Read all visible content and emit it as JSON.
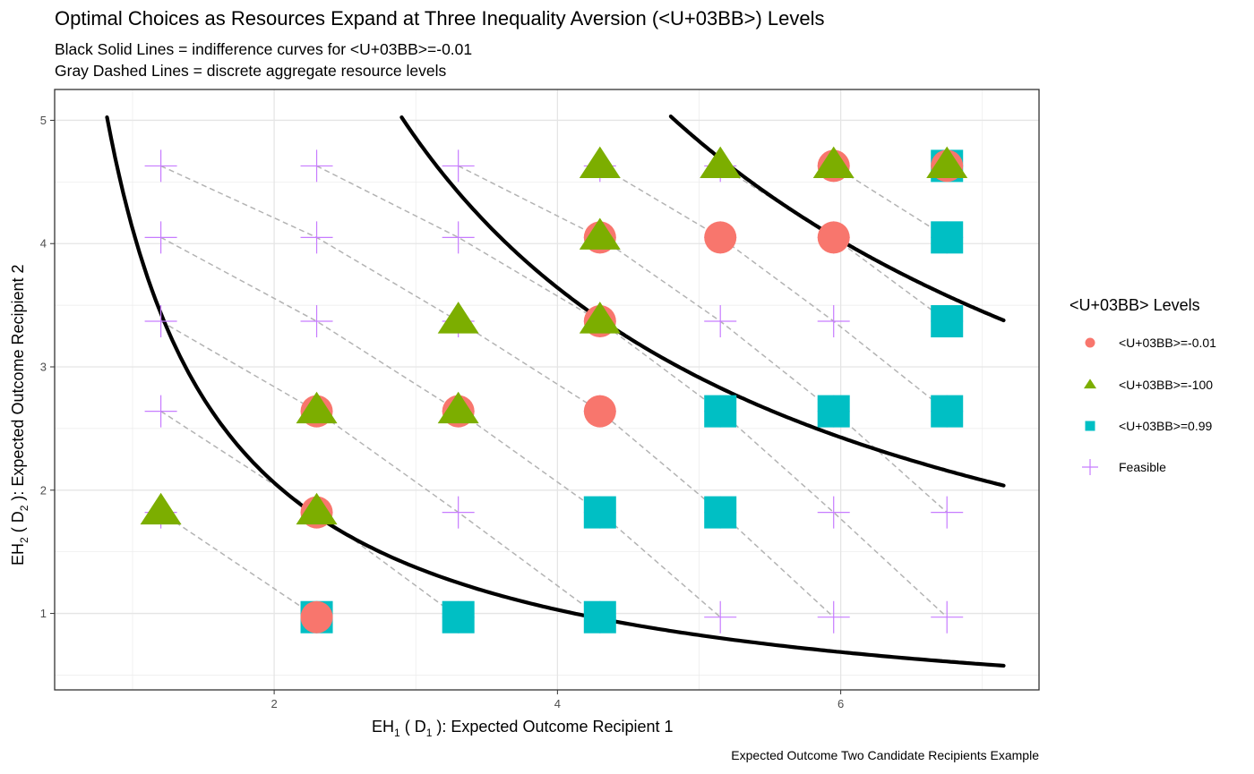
{
  "title": "Optimal Choices as Resources Expand at Three Inequality Aversion (<U+03BB>) Levels",
  "subtitle_line1": "Black Solid Lines = indifference curves for <U+03BB>=-0.01",
  "subtitle_line2": "Gray Dashed Lines = discrete aggregate resource levels",
  "caption": "Expected Outcome Two Candidate Recipients Example",
  "colors": {
    "lambda_neg001": "#F8766D",
    "lambda_neg100": "#7CAE00",
    "lambda_099": "#00BFC4",
    "feasible": "#C77CFF",
    "indifference": "#000000",
    "budget": "#B3B3B3"
  },
  "chart_data": {
    "type": "scatter",
    "title": "Optimal Choices as Resources Expand at Three Inequality Aversion (<U+03BB>) Levels",
    "xlabel": {
      "main": "EH",
      "sub1": "1",
      "mid": " ( D",
      "sub2": "1",
      "tail": " ):  Expected Outcome Recipient 1"
    },
    "ylabel": {
      "main": "EH",
      "sub1": "2",
      "mid": " ( D",
      "sub2": "2",
      "tail": " ):  Expected Outcome Recipient 2"
    },
    "xlim": [
      0.45,
      7.4
    ],
    "ylim": [
      0.38,
      5.25
    ],
    "xticks": [
      2,
      4,
      6
    ],
    "yticks": [
      1,
      2,
      3,
      4,
      5
    ],
    "grid": true,
    "legend_position": "right",
    "legend_title": "<U+03BB> Levels",
    "legend_items": [
      {
        "label": "<U+03BB>=-0.01",
        "shape": "circle",
        "color": "#F8766D"
      },
      {
        "label": "<U+03BB>=-100",
        "shape": "triangle",
        "color": "#7CAE00"
      },
      {
        "label": "<U+03BB>=0.99",
        "shape": "square",
        "color": "#00BFC4"
      },
      {
        "label": "Feasible",
        "shape": "plus",
        "color": "#C77CFF"
      }
    ],
    "feasible": [
      [
        1.2,
        4.63
      ],
      [
        2.3,
        4.63
      ],
      [
        3.3,
        4.63
      ],
      [
        4.3,
        4.63
      ],
      [
        5.15,
        4.63
      ],
      [
        5.95,
        4.63
      ],
      [
        6.75,
        4.63
      ],
      [
        1.2,
        4.05
      ],
      [
        2.3,
        4.05
      ],
      [
        3.3,
        4.05
      ],
      [
        4.3,
        4.05
      ],
      [
        5.15,
        4.05
      ],
      [
        5.95,
        4.05
      ],
      [
        6.75,
        4.05
      ],
      [
        1.2,
        3.37
      ],
      [
        2.3,
        3.37
      ],
      [
        3.3,
        3.37
      ],
      [
        4.3,
        3.37
      ],
      [
        5.15,
        3.37
      ],
      [
        5.95,
        3.37
      ],
      [
        6.75,
        3.37
      ],
      [
        1.2,
        2.64
      ],
      [
        2.3,
        2.64
      ],
      [
        3.3,
        2.64
      ],
      [
        4.3,
        2.64
      ],
      [
        5.15,
        2.64
      ],
      [
        5.95,
        2.64
      ],
      [
        6.75,
        2.64
      ],
      [
        1.2,
        1.82
      ],
      [
        2.3,
        1.82
      ],
      [
        3.3,
        1.82
      ],
      [
        4.3,
        1.82
      ],
      [
        5.15,
        1.82
      ],
      [
        5.95,
        1.82
      ],
      [
        6.75,
        1.82
      ],
      [
        2.3,
        0.97
      ],
      [
        3.3,
        0.97
      ],
      [
        4.3,
        0.97
      ],
      [
        5.15,
        0.97
      ],
      [
        5.95,
        0.97
      ],
      [
        6.75,
        0.97
      ]
    ],
    "series": [
      {
        "name": "<U+03BB>=-0.01",
        "shape": "circle",
        "points": [
          [
            2.3,
            0.97
          ],
          [
            2.3,
            1.82
          ],
          [
            2.3,
            2.64
          ],
          [
            3.3,
            2.64
          ],
          [
            4.3,
            2.64
          ],
          [
            4.3,
            3.37
          ],
          [
            4.3,
            4.05
          ],
          [
            5.15,
            4.05
          ],
          [
            5.95,
            4.05
          ],
          [
            5.95,
            4.63
          ],
          [
            6.75,
            4.63
          ]
        ]
      },
      {
        "name": "<U+03BB>=-100",
        "shape": "triangle",
        "points": [
          [
            1.2,
            1.82
          ],
          [
            2.3,
            1.82
          ],
          [
            2.3,
            2.64
          ],
          [
            3.3,
            2.64
          ],
          [
            3.3,
            3.37
          ],
          [
            4.3,
            3.37
          ],
          [
            4.3,
            4.05
          ],
          [
            4.3,
            4.63
          ],
          [
            5.15,
            4.63
          ],
          [
            5.95,
            4.63
          ],
          [
            6.75,
            4.63
          ]
        ]
      },
      {
        "name": "<U+03BB>=0.99",
        "shape": "square",
        "points": [
          [
            2.3,
            0.97
          ],
          [
            3.3,
            0.97
          ],
          [
            4.3,
            0.97
          ],
          [
            4.3,
            1.82
          ],
          [
            5.15,
            1.82
          ],
          [
            5.15,
            2.64
          ],
          [
            5.95,
            2.64
          ],
          [
            6.75,
            2.64
          ],
          [
            6.75,
            3.37
          ],
          [
            6.75,
            4.05
          ],
          [
            6.75,
            4.63
          ]
        ]
      }
    ],
    "indifference_curves": [
      {
        "k": 4.12,
        "x_from": 0.82,
        "x_to": 7.15
      },
      {
        "k": 14.57,
        "x_from": 2.9,
        "x_to": 7.15
      },
      {
        "k": 24.15,
        "x_from": 4.8,
        "x_to": 7.15
      }
    ],
    "budget_lines": [
      [
        [
          1.2,
          1.82
        ],
        [
          2.3,
          0.97
        ]
      ],
      [
        [
          1.2,
          2.64
        ],
        [
          2.3,
          1.82
        ],
        [
          3.3,
          0.97
        ]
      ],
      [
        [
          1.2,
          3.37
        ],
        [
          2.3,
          2.64
        ],
        [
          3.3,
          1.82
        ],
        [
          4.3,
          0.97
        ]
      ],
      [
        [
          1.2,
          4.05
        ],
        [
          2.3,
          3.37
        ],
        [
          3.3,
          2.64
        ],
        [
          4.3,
          1.82
        ],
        [
          5.15,
          0.97
        ]
      ],
      [
        [
          1.2,
          4.63
        ],
        [
          2.3,
          4.05
        ],
        [
          3.3,
          3.37
        ],
        [
          4.3,
          2.64
        ],
        [
          5.15,
          1.82
        ],
        [
          5.95,
          0.97
        ]
      ],
      [
        [
          2.3,
          4.63
        ],
        [
          3.3,
          4.05
        ],
        [
          4.3,
          3.37
        ],
        [
          5.15,
          2.64
        ],
        [
          5.95,
          1.82
        ],
        [
          6.75,
          0.97
        ]
      ],
      [
        [
          3.3,
          4.63
        ],
        [
          4.3,
          4.05
        ],
        [
          5.15,
          3.37
        ],
        [
          5.95,
          2.64
        ],
        [
          6.75,
          1.82
        ]
      ],
      [
        [
          4.3,
          4.63
        ],
        [
          5.15,
          4.05
        ],
        [
          5.95,
          3.37
        ],
        [
          6.75,
          2.64
        ]
      ],
      [
        [
          5.15,
          4.63
        ],
        [
          5.95,
          4.05
        ],
        [
          6.75,
          3.37
        ]
      ],
      [
        [
          5.95,
          4.63
        ],
        [
          6.75,
          4.05
        ]
      ]
    ]
  }
}
